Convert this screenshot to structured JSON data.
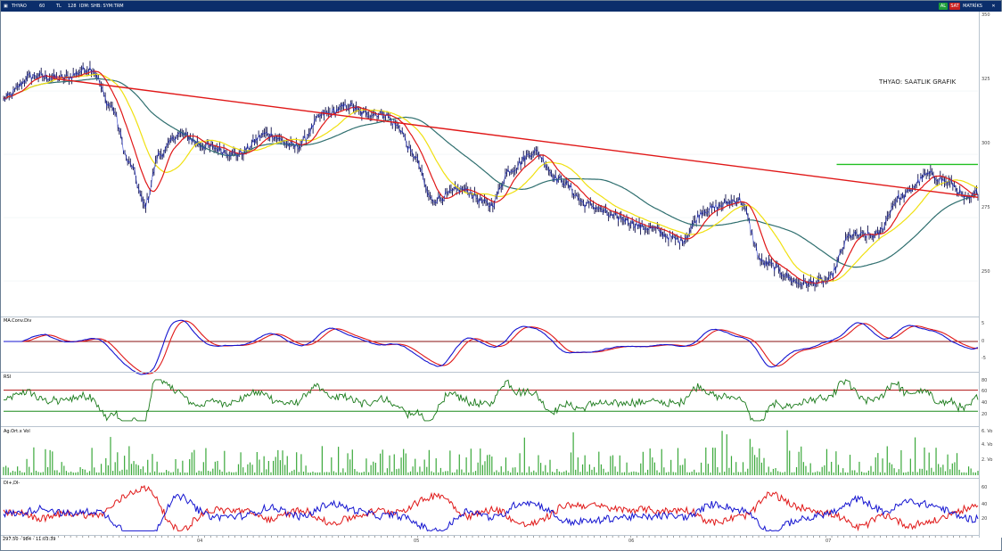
{
  "window": {
    "symbol": "THYAO",
    "toolbar_items": [
      "60",
      "TL",
      "128",
      "IDM: SHB: SYM:TRM"
    ],
    "right_buttons": [
      "AL",
      "SAT",
      "MATRİKS"
    ]
  },
  "annotation": {
    "text": "THYAO: SAATLIK GRAFIK"
  },
  "status": {
    "text": "297.50 - 984 - 11:03:39"
  },
  "panels": {
    "macd": {
      "label": "MA.Conv.Div"
    },
    "rsi": {
      "label": "RSI"
    },
    "volume": {
      "label": "Ag.Ort.x Vol"
    },
    "dmi": {
      "label": "DI+,DI-"
    }
  },
  "axes": {
    "price_ticks": [
      "350",
      "325",
      "300",
      "275",
      "250"
    ],
    "macd_ticks": [
      "5",
      "0",
      "-5"
    ],
    "rsi_ticks": [
      "80",
      "60",
      "40",
      "20"
    ],
    "volume_ticks": [
      "6. Vo",
      "4. Vo",
      "2. Vo"
    ],
    "dmi_ticks": [
      "60",
      "40",
      "20"
    ],
    "x_ticks": [
      "04",
      "05",
      "06",
      "07"
    ]
  },
  "colors": {
    "price_bars": "#10104a",
    "ma_short": "#e01818",
    "ma_mid": "#f0e010",
    "ma_long": "#2f6f6f",
    "trendline": "#e01818",
    "resistance": "#22c022",
    "macd_line": "#1414d0",
    "signal_line": "#e01818",
    "rsi_line": "#1a7a1a",
    "volume_bars": "#3aa83a",
    "di_plus": "#1414d0",
    "di_minus": "#e01818"
  },
  "chart_data": {
    "type": "line",
    "title": "THYAO: SAATLIK GRAFIK",
    "ylim": [
      237,
      356
    ],
    "price_path": [
      [
        0.0,
        322
      ],
      [
        0.03,
        331
      ],
      [
        0.06,
        330
      ],
      [
        0.09,
        334
      ],
      [
        0.11,
        319
      ],
      [
        0.13,
        296
      ],
      [
        0.145,
        280
      ],
      [
        0.16,
        300
      ],
      [
        0.18,
        308
      ],
      [
        0.21,
        303
      ],
      [
        0.24,
        300
      ],
      [
        0.27,
        308
      ],
      [
        0.3,
        303
      ],
      [
        0.33,
        316
      ],
      [
        0.355,
        319
      ],
      [
        0.37,
        316
      ],
      [
        0.39,
        316
      ],
      [
        0.405,
        311
      ],
      [
        0.42,
        300
      ],
      [
        0.44,
        282
      ],
      [
        0.47,
        286
      ],
      [
        0.5,
        280
      ],
      [
        0.52,
        294
      ],
      [
        0.545,
        301
      ],
      [
        0.57,
        290
      ],
      [
        0.6,
        280
      ],
      [
        0.63,
        275
      ],
      [
        0.66,
        271
      ],
      [
        0.695,
        266
      ],
      [
        0.72,
        278
      ],
      [
        0.755,
        282
      ],
      [
        0.78,
        257
      ],
      [
        0.82,
        249
      ],
      [
        0.845,
        250
      ],
      [
        0.87,
        268
      ],
      [
        0.895,
        268
      ],
      [
        0.92,
        283
      ],
      [
        0.95,
        292
      ],
      [
        0.97,
        289
      ],
      [
        0.99,
        282
      ],
      [
        1.0,
        285
      ]
    ],
    "series": [
      {
        "values": "short moving average"
      },
      {
        "values": "mid moving average"
      },
      {
        "values": "long moving average"
      }
    ],
    "lines": {
      "trendline_start": [
        0.05,
        330
      ],
      "trendline_end": [
        1.0,
        283
      ],
      "resistance_level": 296,
      "resistance_from": 0.855
    }
  }
}
